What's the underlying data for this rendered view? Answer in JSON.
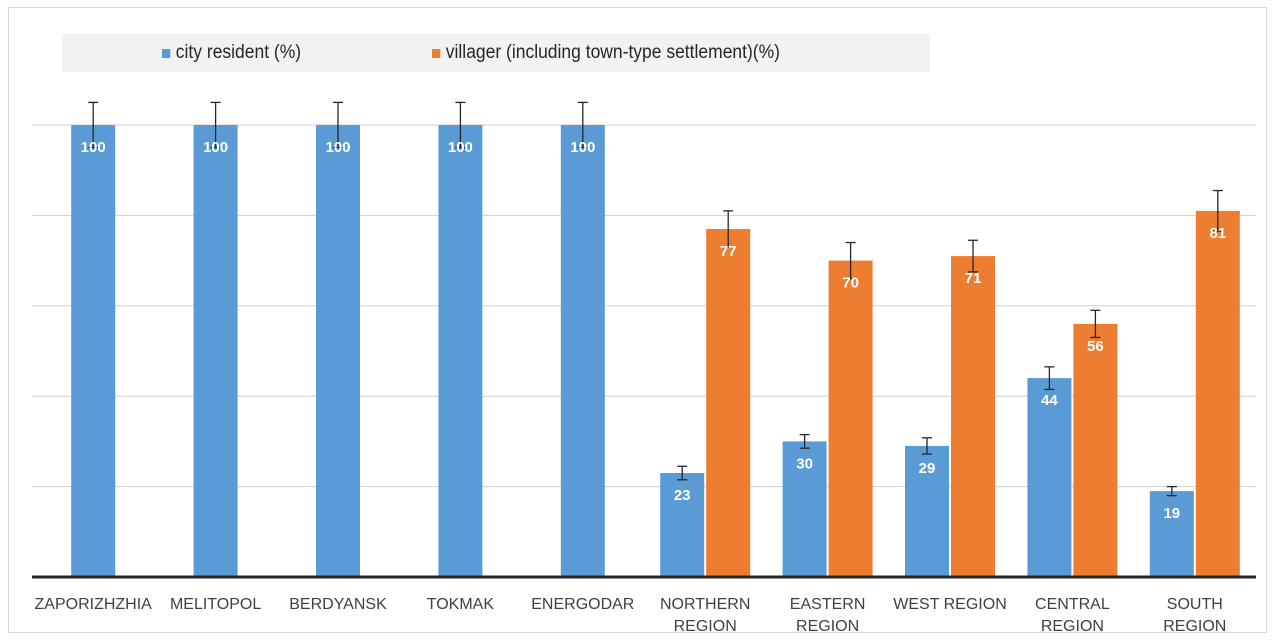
{
  "chart_data": {
    "type": "bar",
    "categories": [
      [
        "ZAPORIZHZHIA"
      ],
      [
        "MELITOPOL"
      ],
      [
        "BERDYANSK"
      ],
      [
        "TOKMAK"
      ],
      [
        "ENERGODAR"
      ],
      [
        "NORTHERN",
        "REGION"
      ],
      [
        "EASTERN",
        "REGION"
      ],
      [
        "WEST REGION"
      ],
      [
        "CENTRAL",
        "REGION"
      ],
      [
        "SOUTH",
        "REGION"
      ]
    ],
    "series": [
      {
        "name": "city resident (%)",
        "color": "#5b9bd5",
        "values": [
          100,
          100,
          100,
          100,
          100,
          23,
          30,
          29,
          44,
          19
        ],
        "error": [
          5,
          5,
          5,
          5,
          5,
          1.5,
          1.5,
          1.8,
          2.5,
          1
        ]
      },
      {
        "name": "villager (including town-type settlement)(%)",
        "color": "#ed7d31",
        "values": [
          null,
          null,
          null,
          null,
          null,
          77,
          70,
          71,
          56,
          81
        ],
        "error": [
          null,
          null,
          null,
          null,
          null,
          4,
          4,
          3.5,
          3,
          4.5
        ]
      }
    ],
    "ylim": [
      0,
      100
    ],
    "gridlines": [
      20,
      40,
      60,
      80,
      100
    ],
    "grid": true,
    "legend_position": "top"
  }
}
